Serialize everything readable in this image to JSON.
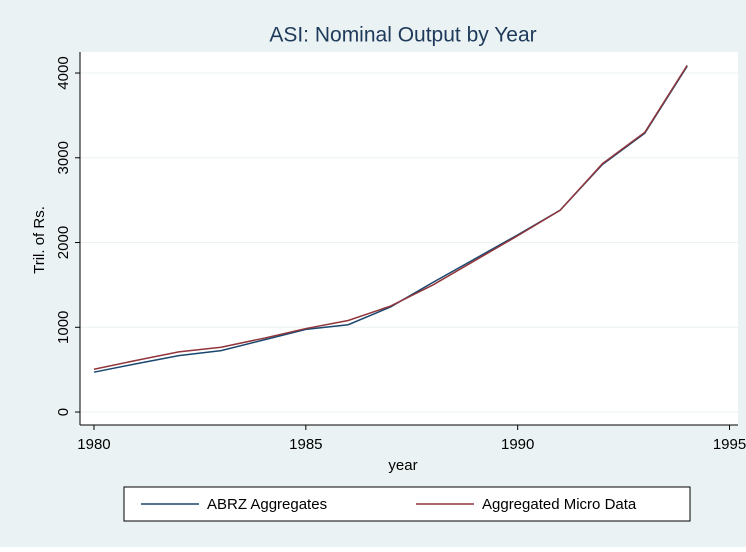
{
  "chart_data": {
    "type": "line",
    "title": "ASI: Nominal Output by Year",
    "x_label": "year",
    "y_label": "Tril. of Rs.",
    "x": [
      1980,
      1981,
      1982,
      1983,
      1984,
      1985,
      1986,
      1987,
      1988,
      1989,
      1990,
      1991,
      1992,
      1993,
      1994
    ],
    "series": [
      {
        "name": "ABRZ Aggregates",
        "color": "#1a476f",
        "values": [
          470,
          570,
          665,
          725,
          850,
          975,
          1030,
          1240,
          1530,
          1810,
          2090,
          2380,
          2920,
          3290,
          4080
        ]
      },
      {
        "name": "Aggregated Micro Data",
        "color": "#90353b",
        "values": [
          505,
          610,
          710,
          765,
          870,
          985,
          1080,
          1250,
          1500,
          1790,
          2080,
          2380,
          2930,
          3300,
          4090
        ]
      }
    ],
    "xlim": [
      1979.67,
      1995.2
    ],
    "xticks": [
      1980,
      1985,
      1990,
      1995
    ],
    "ylim": [
      -153,
      4248
    ],
    "yticks": [
      0,
      1000,
      2000,
      3000,
      4000
    ],
    "grid": true,
    "legend": "bottom"
  }
}
